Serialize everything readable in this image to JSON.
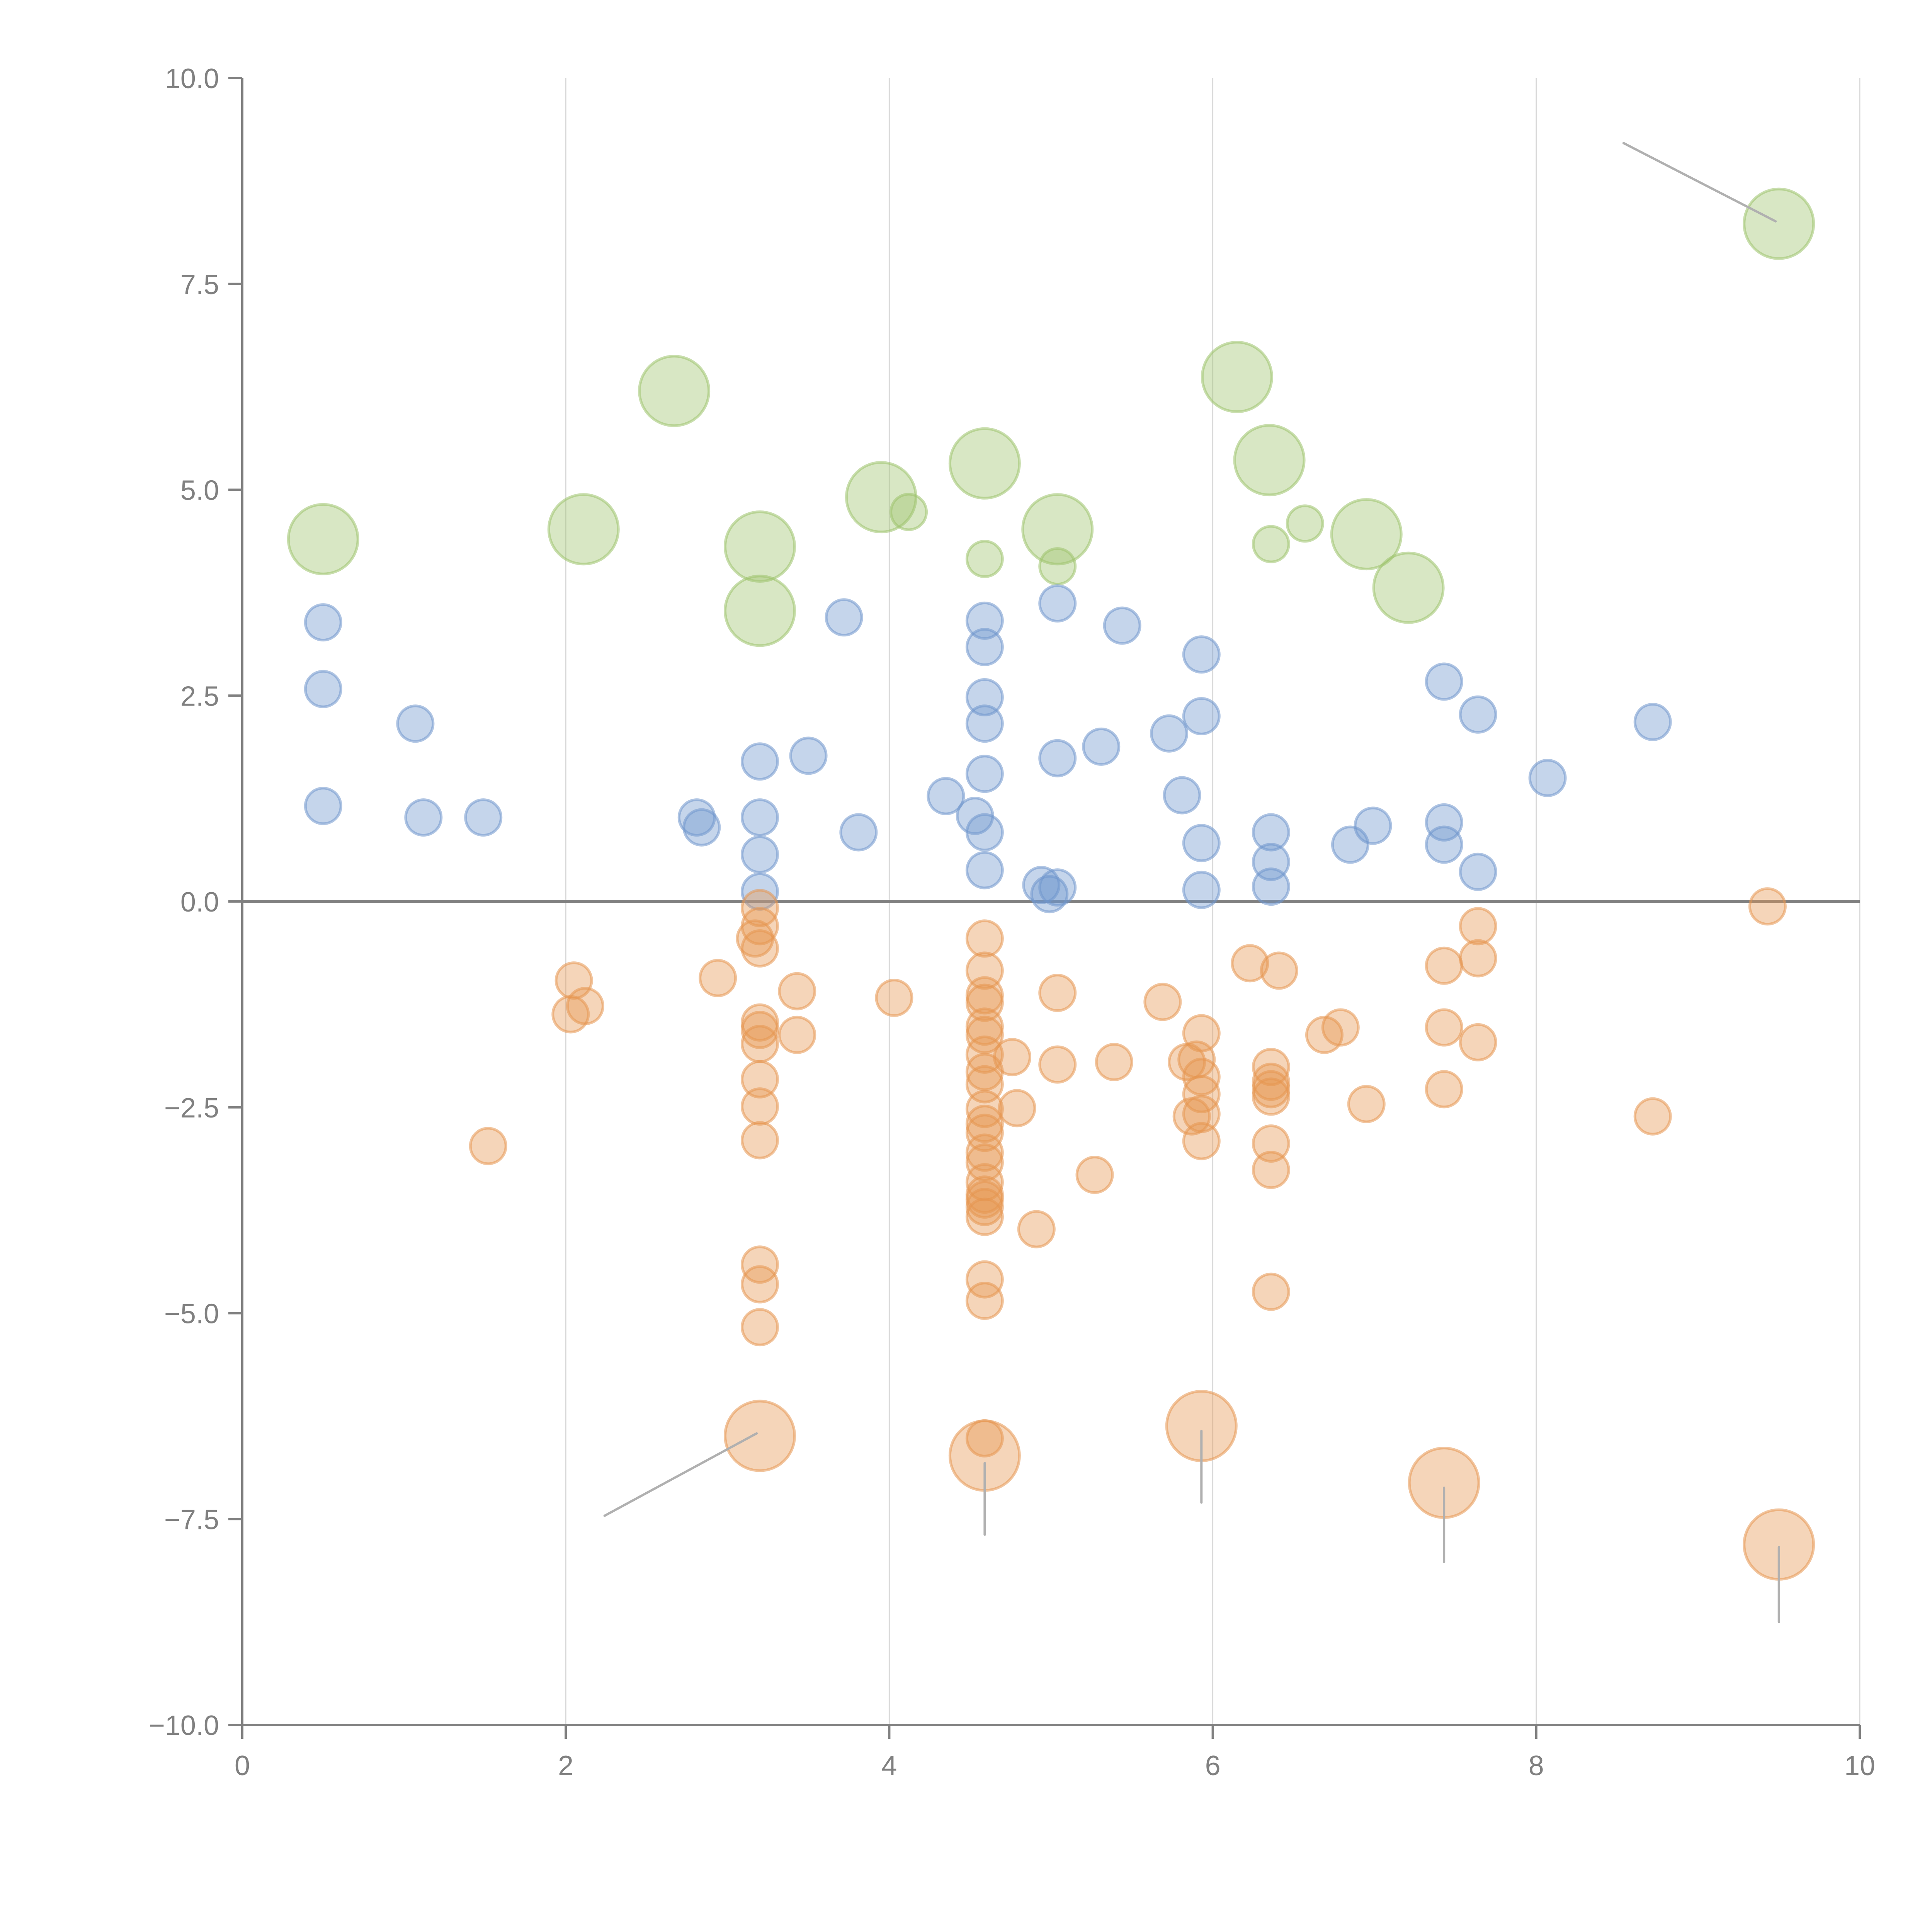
{
  "chart_data": {
    "type": "scatter",
    "subtype": "bubble",
    "title": "",
    "xlabel": "",
    "ylabel": "",
    "xlim": [
      0,
      10
    ],
    "ylim": [
      -10,
      10
    ],
    "x_ticks": [
      "0",
      "2",
      "4",
      "6",
      "8",
      "10"
    ],
    "x_tick_values": [
      0,
      2,
      4,
      6,
      8,
      10
    ],
    "y_ticks": [
      "10.0",
      "7.5",
      "5.0",
      "2.5",
      "0.0",
      "−2.5",
      "−5.0",
      "−7.5",
      "−10.0"
    ],
    "y_tick_values": [
      10,
      7.5,
      5,
      2.5,
      0,
      -2.5,
      -5,
      -7.5,
      -10
    ],
    "grid": "vertical",
    "zero_line": true,
    "legend": "none",
    "series": [
      {
        "name": "green",
        "color": "#9dc26b",
        "points": [
          {
            "x": 0.5,
            "y": 4.4,
            "size": 2
          },
          {
            "x": 2.11,
            "y": 4.52,
            "size": 2
          },
          {
            "x": 2.67,
            "y": 6.2,
            "size": 2
          },
          {
            "x": 3.2,
            "y": 4.31,
            "size": 2
          },
          {
            "x": 3.2,
            "y": 3.53,
            "size": 2
          },
          {
            "x": 3.95,
            "y": 4.91,
            "size": 2
          },
          {
            "x": 4.12,
            "y": 4.73,
            "size": 1
          },
          {
            "x": 4.59,
            "y": 5.32,
            "size": 2
          },
          {
            "x": 4.59,
            "y": 4.16,
            "size": 1
          },
          {
            "x": 5.04,
            "y": 4.52,
            "size": 2
          },
          {
            "x": 5.04,
            "y": 4.07,
            "size": 1
          },
          {
            "x": 6.15,
            "y": 6.37,
            "size": 2
          },
          {
            "x": 6.35,
            "y": 5.36,
            "size": 2
          },
          {
            "x": 6.36,
            "y": 4.34,
            "size": 1
          },
          {
            "x": 6.57,
            "y": 4.59,
            "size": 1
          },
          {
            "x": 6.95,
            "y": 4.46,
            "size": 2
          },
          {
            "x": 7.21,
            "y": 3.81,
            "size": 2
          },
          {
            "x": 9.5,
            "y": 8.23,
            "size": 2
          }
        ]
      },
      {
        "name": "blue",
        "color": "#6f95cc",
        "points": [
          {
            "x": 0.5,
            "y": 3.39,
            "size": 1
          },
          {
            "x": 0.5,
            "y": 2.58,
            "size": 1
          },
          {
            "x": 1.07,
            "y": 2.16,
            "size": 1
          },
          {
            "x": 0.5,
            "y": 1.16,
            "size": 1
          },
          {
            "x": 1.12,
            "y": 1.02,
            "size": 1
          },
          {
            "x": 1.49,
            "y": 1.02,
            "size": 1
          },
          {
            "x": 2.81,
            "y": 1.02,
            "size": 1
          },
          {
            "x": 2.84,
            "y": 0.9,
            "size": 1
          },
          {
            "x": 3.2,
            "y": 1.7,
            "size": 1
          },
          {
            "x": 3.2,
            "y": 1.02,
            "size": 1
          },
          {
            "x": 3.2,
            "y": 0.57,
            "size": 1
          },
          {
            "x": 3.2,
            "y": 0.12,
            "size": 1
          },
          {
            "x": 3.5,
            "y": 1.77,
            "size": 1
          },
          {
            "x": 3.72,
            "y": 3.45,
            "size": 1
          },
          {
            "x": 3.81,
            "y": 0.84,
            "size": 1
          },
          {
            "x": 4.35,
            "y": 1.28,
            "size": 1
          },
          {
            "x": 4.53,
            "y": 1.04,
            "size": 1
          },
          {
            "x": 4.59,
            "y": 0.84,
            "size": 1
          },
          {
            "x": 4.59,
            "y": 0.38,
            "size": 1
          },
          {
            "x": 4.59,
            "y": 1.55,
            "size": 1
          },
          {
            "x": 4.59,
            "y": 2.16,
            "size": 1
          },
          {
            "x": 4.59,
            "y": 2.48,
            "size": 1
          },
          {
            "x": 4.59,
            "y": 3.09,
            "size": 1
          },
          {
            "x": 4.59,
            "y": 3.41,
            "size": 1
          },
          {
            "x": 5.04,
            "y": 3.62,
            "size": 1
          },
          {
            "x": 5.04,
            "y": 1.74,
            "size": 1
          },
          {
            "x": 4.94,
            "y": 0.2,
            "size": 1
          },
          {
            "x": 4.99,
            "y": 0.09,
            "size": 1
          },
          {
            "x": 5.04,
            "y": 0.17,
            "size": 1
          },
          {
            "x": 5.31,
            "y": 1.88,
            "size": 1
          },
          {
            "x": 5.44,
            "y": 3.35,
            "size": 1
          },
          {
            "x": 5.73,
            "y": 2.04,
            "size": 1
          },
          {
            "x": 5.81,
            "y": 1.29,
            "size": 1
          },
          {
            "x": 5.93,
            "y": 3.0,
            "size": 1
          },
          {
            "x": 5.93,
            "y": 2.25,
            "size": 1
          },
          {
            "x": 5.93,
            "y": 0.71,
            "size": 1
          },
          {
            "x": 5.93,
            "y": 0.14,
            "size": 1
          },
          {
            "x": 6.36,
            "y": 0.84,
            "size": 1
          },
          {
            "x": 6.36,
            "y": 0.48,
            "size": 1
          },
          {
            "x": 6.36,
            "y": 0.18,
            "size": 1
          },
          {
            "x": 6.85,
            "y": 0.69,
            "size": 1
          },
          {
            "x": 6.99,
            "y": 0.92,
            "size": 1
          },
          {
            "x": 7.43,
            "y": 2.67,
            "size": 1
          },
          {
            "x": 7.43,
            "y": 0.96,
            "size": 1
          },
          {
            "x": 7.43,
            "y": 0.69,
            "size": 1
          },
          {
            "x": 7.64,
            "y": 2.27,
            "size": 1
          },
          {
            "x": 7.64,
            "y": 0.36,
            "size": 1
          },
          {
            "x": 8.07,
            "y": 1.5,
            "size": 1
          },
          {
            "x": 8.72,
            "y": 2.18,
            "size": 1
          }
        ]
      },
      {
        "name": "orange",
        "color": "#e59550",
        "points": [
          {
            "x": 3.2,
            "y": -0.08,
            "size": 1
          },
          {
            "x": 3.2,
            "y": -0.3,
            "size": 1
          },
          {
            "x": 3.17,
            "y": -0.45,
            "size": 1
          },
          {
            "x": 3.2,
            "y": -0.57,
            "size": 1
          },
          {
            "x": 2.05,
            "y": -0.96,
            "size": 1
          },
          {
            "x": 2.12,
            "y": -1.27,
            "size": 1
          },
          {
            "x": 2.03,
            "y": -1.37,
            "size": 1
          },
          {
            "x": 2.94,
            "y": -0.93,
            "size": 1
          },
          {
            "x": 3.2,
            "y": -1.47,
            "size": 1
          },
          {
            "x": 3.2,
            "y": -1.56,
            "size": 1
          },
          {
            "x": 3.2,
            "y": -1.73,
            "size": 1
          },
          {
            "x": 3.43,
            "y": -1.09,
            "size": 1
          },
          {
            "x": 3.43,
            "y": -1.62,
            "size": 1
          },
          {
            "x": 3.2,
            "y": -2.16,
            "size": 1
          },
          {
            "x": 3.2,
            "y": -2.49,
            "size": 1
          },
          {
            "x": 3.2,
            "y": -2.9,
            "size": 1
          },
          {
            "x": 1.52,
            "y": -2.97,
            "size": 1
          },
          {
            "x": 3.2,
            "y": -4.41,
            "size": 1
          },
          {
            "x": 3.2,
            "y": -4.65,
            "size": 1
          },
          {
            "x": 3.2,
            "y": -5.17,
            "size": 1
          },
          {
            "x": 4.03,
            "y": -1.17,
            "size": 1
          },
          {
            "x": 4.59,
            "y": -0.45,
            "size": 1
          },
          {
            "x": 4.59,
            "y": -0.84,
            "size": 1
          },
          {
            "x": 4.59,
            "y": -1.14,
            "size": 1
          },
          {
            "x": 4.59,
            "y": -1.23,
            "size": 1
          },
          {
            "x": 4.59,
            "y": -1.52,
            "size": 1
          },
          {
            "x": 4.59,
            "y": -1.62,
            "size": 1
          },
          {
            "x": 4.59,
            "y": -1.86,
            "size": 1
          },
          {
            "x": 4.59,
            "y": -2.07,
            "size": 1
          },
          {
            "x": 4.59,
            "y": -2.22,
            "size": 1
          },
          {
            "x": 4.59,
            "y": -2.52,
            "size": 1
          },
          {
            "x": 4.59,
            "y": -2.7,
            "size": 1
          },
          {
            "x": 4.59,
            "y": -2.81,
            "size": 1
          },
          {
            "x": 4.59,
            "y": -3.05,
            "size": 1
          },
          {
            "x": 4.59,
            "y": -3.17,
            "size": 1
          },
          {
            "x": 4.59,
            "y": -3.41,
            "size": 1
          },
          {
            "x": 4.59,
            "y": -3.56,
            "size": 1
          },
          {
            "x": 4.59,
            "y": -3.62,
            "size": 1
          },
          {
            "x": 4.59,
            "y": -3.71,
            "size": 1
          },
          {
            "x": 4.59,
            "y": -3.83,
            "size": 1
          },
          {
            "x": 4.59,
            "y": -4.59,
            "size": 1
          },
          {
            "x": 4.59,
            "y": -4.85,
            "size": 1
          },
          {
            "x": 4.76,
            "y": -1.89,
            "size": 1
          },
          {
            "x": 4.79,
            "y": -2.51,
            "size": 1
          },
          {
            "x": 4.91,
            "y": -3.98,
            "size": 1
          },
          {
            "x": 5.04,
            "y": -1.11,
            "size": 1
          },
          {
            "x": 5.04,
            "y": -1.98,
            "size": 1
          },
          {
            "x": 5.27,
            "y": -3.32,
            "size": 1
          },
          {
            "x": 5.39,
            "y": -1.95,
            "size": 1
          },
          {
            "x": 5.69,
            "y": -1.22,
            "size": 1
          },
          {
            "x": 5.93,
            "y": -1.6,
            "size": 1
          },
          {
            "x": 5.9,
            "y": -1.92,
            "size": 1
          },
          {
            "x": 5.84,
            "y": -1.95,
            "size": 1
          },
          {
            "x": 5.93,
            "y": -2.13,
            "size": 1
          },
          {
            "x": 5.93,
            "y": -2.34,
            "size": 1
          },
          {
            "x": 5.93,
            "y": -2.58,
            "size": 1
          },
          {
            "x": 5.87,
            "y": -2.61,
            "size": 1
          },
          {
            "x": 5.93,
            "y": -2.91,
            "size": 1
          },
          {
            "x": 6.23,
            "y": -0.75,
            "size": 1
          },
          {
            "x": 6.41,
            "y": -0.84,
            "size": 1
          },
          {
            "x": 6.36,
            "y": -2.01,
            "size": 1
          },
          {
            "x": 6.36,
            "y": -2.19,
            "size": 1
          },
          {
            "x": 6.36,
            "y": -2.28,
            "size": 1
          },
          {
            "x": 6.36,
            "y": -2.37,
            "size": 1
          },
          {
            "x": 6.36,
            "y": -2.94,
            "size": 1
          },
          {
            "x": 6.36,
            "y": -3.26,
            "size": 1
          },
          {
            "x": 6.36,
            "y": -4.74,
            "size": 1
          },
          {
            "x": 6.69,
            "y": -1.62,
            "size": 1
          },
          {
            "x": 6.79,
            "y": -1.53,
            "size": 1
          },
          {
            "x": 6.95,
            "y": -2.46,
            "size": 1
          },
          {
            "x": 7.43,
            "y": -0.78,
            "size": 1
          },
          {
            "x": 7.43,
            "y": -1.53,
            "size": 1
          },
          {
            "x": 7.43,
            "y": -2.28,
            "size": 1
          },
          {
            "x": 7.64,
            "y": -0.3,
            "size": 1
          },
          {
            "x": 7.64,
            "y": -0.69,
            "size": 1
          },
          {
            "x": 7.64,
            "y": -1.71,
            "size": 1
          },
          {
            "x": 8.72,
            "y": -2.61,
            "size": 1
          },
          {
            "x": 9.43,
            "y": -0.06,
            "size": 1
          },
          {
            "x": 3.2,
            "y": -6.49,
            "size": 2
          },
          {
            "x": 4.59,
            "y": -6.73,
            "size": 2
          },
          {
            "x": 4.59,
            "y": -6.52,
            "size": 1
          },
          {
            "x": 5.93,
            "y": -6.37,
            "size": 2
          },
          {
            "x": 7.43,
            "y": -7.06,
            "size": 2
          },
          {
            "x": 9.5,
            "y": -7.81,
            "size": 2
          }
        ]
      }
    ],
    "annotation_leaders": [
      {
        "from": {
          "x": 9.48,
          "y": 8.26
        },
        "to": {
          "x": 8.54,
          "y": 9.21
        }
      },
      {
        "from": {
          "x": 3.18,
          "y": -6.46
        },
        "to": {
          "x": 2.24,
          "y": -7.46
        }
      },
      {
        "from": {
          "x": 4.59,
          "y": -6.82
        },
        "to": {
          "x": 4.59,
          "y": -7.69
        }
      },
      {
        "from": {
          "x": 5.93,
          "y": -6.43
        },
        "to": {
          "x": 5.93,
          "y": -7.3
        }
      },
      {
        "from": {
          "x": 7.43,
          "y": -7.12
        },
        "to": {
          "x": 7.43,
          "y": -8.02
        }
      },
      {
        "from": {
          "x": 9.5,
          "y": -7.84
        },
        "to": {
          "x": 9.5,
          "y": -8.75
        }
      }
    ]
  }
}
